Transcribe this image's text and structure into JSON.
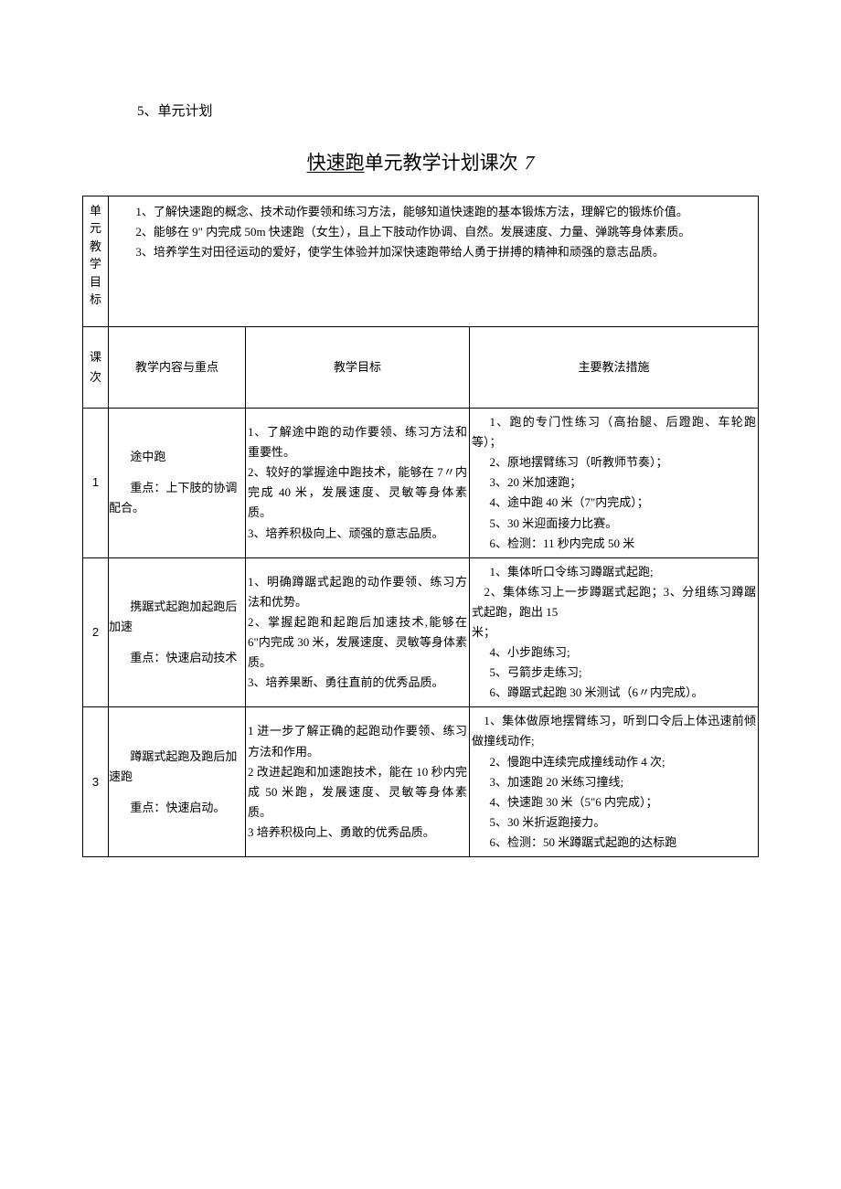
{
  "section_heading": "5、单元计划",
  "title": {
    "underlined": "快速跑",
    "rest": "单元教学计划课次",
    "count": "7"
  },
  "unit_goal_label": "单元教学目标",
  "unit_goals": [
    "1、了解快速跑的概念、技术动作要领和练习方法，能够知道快速跑的基本锻炼方法，理解它的锻炼价值。",
    "2、能够在 9\" 内完成 50m 快速跑（女生），且上下肢动作协调、自然。发展速度、力量、弹跳等身体素质。",
    "3、培养学生对田径运动的爱好，使学生体验并加深快速跑带给人勇于拼搏的精神和顽强的意志品质。"
  ],
  "headers": {
    "lesson": "课次",
    "content": "教学内容与重点",
    "goal": "教学目标",
    "measure": "主要教法措施"
  },
  "rows": [
    {
      "num": "1",
      "content_lines": [
        "途中跑",
        "重点：上下肢的协调配合。"
      ],
      "goals": "1、了解途中跑的动作要领、练习方法和重要性。\n2、较好的掌握途中跑技术，能够在 7〃内完成 40 米，发展速度、灵敏等身体素质。\n3、培养积极向上、顽强的意志品质。",
      "measures": [
        "1、跑的专门性练习（高抬腿、后蹬跑、车轮跑等）；",
        "2、原地摆臂练习（听教师节奏）；",
        "3、20 米加速跑；",
        "4、途中跑 40 米（7\"内完成）；",
        "5、30 米迎面接力比赛。",
        "6、检测：11 秒内完成 50 米"
      ]
    },
    {
      "num": "2",
      "content_lines": [
        "携踞式起跑加起跑后加速",
        "重点：快速启动技术"
      ],
      "goals": "1、明确蹲踞式起跑的动作要领、练习方法和优势。\n2、掌握起跑和起跑后加速技术,能够在 6\"内完成 30 米，发展速度、灵敏等身体素质。\n3、培养果断、勇往直前的优秀品质。",
      "measures_prefix": "1、集体听口令练习蹲踞式起跑;\n　2、集体练习上一步蹲踞式起跑；3、分组练习蹲踞式起跑，跑出 15\n米；",
      "measures_rest": [
        "4、小步跑练习;",
        "5、弓箭步走练习;",
        "6、蹲踞式起跑 30 米测试（6〃内完成）。"
      ]
    },
    {
      "num": "3",
      "content_lines": [
        "蹲踞式起跑及跑后加速跑",
        "重点：快速启动。"
      ],
      "goals": "1 进一步了解正确的起跑动作要领、练习方法和作用。\n2 改进起跑和加速跑技术，能在 10 秒内完成 50 米跑，发展速度、灵敏等身体素质。\n3 培养积极向上、勇敢的优秀品质。",
      "measures_prefix": "　1、集体做原地摆臂练习，听到口令后上体迅速前倾做撞线动作;",
      "measures_rest": [
        "2、慢跑中连续完成撞线动作 4 次;",
        "3、加速跑 20 米练习撞线;",
        "4、快速跑 30 米（5\"6 内完成）；",
        "5、30 米折返跑接力。",
        "6、检测：50 米蹲踞式起跑的达标跑"
      ]
    }
  ]
}
